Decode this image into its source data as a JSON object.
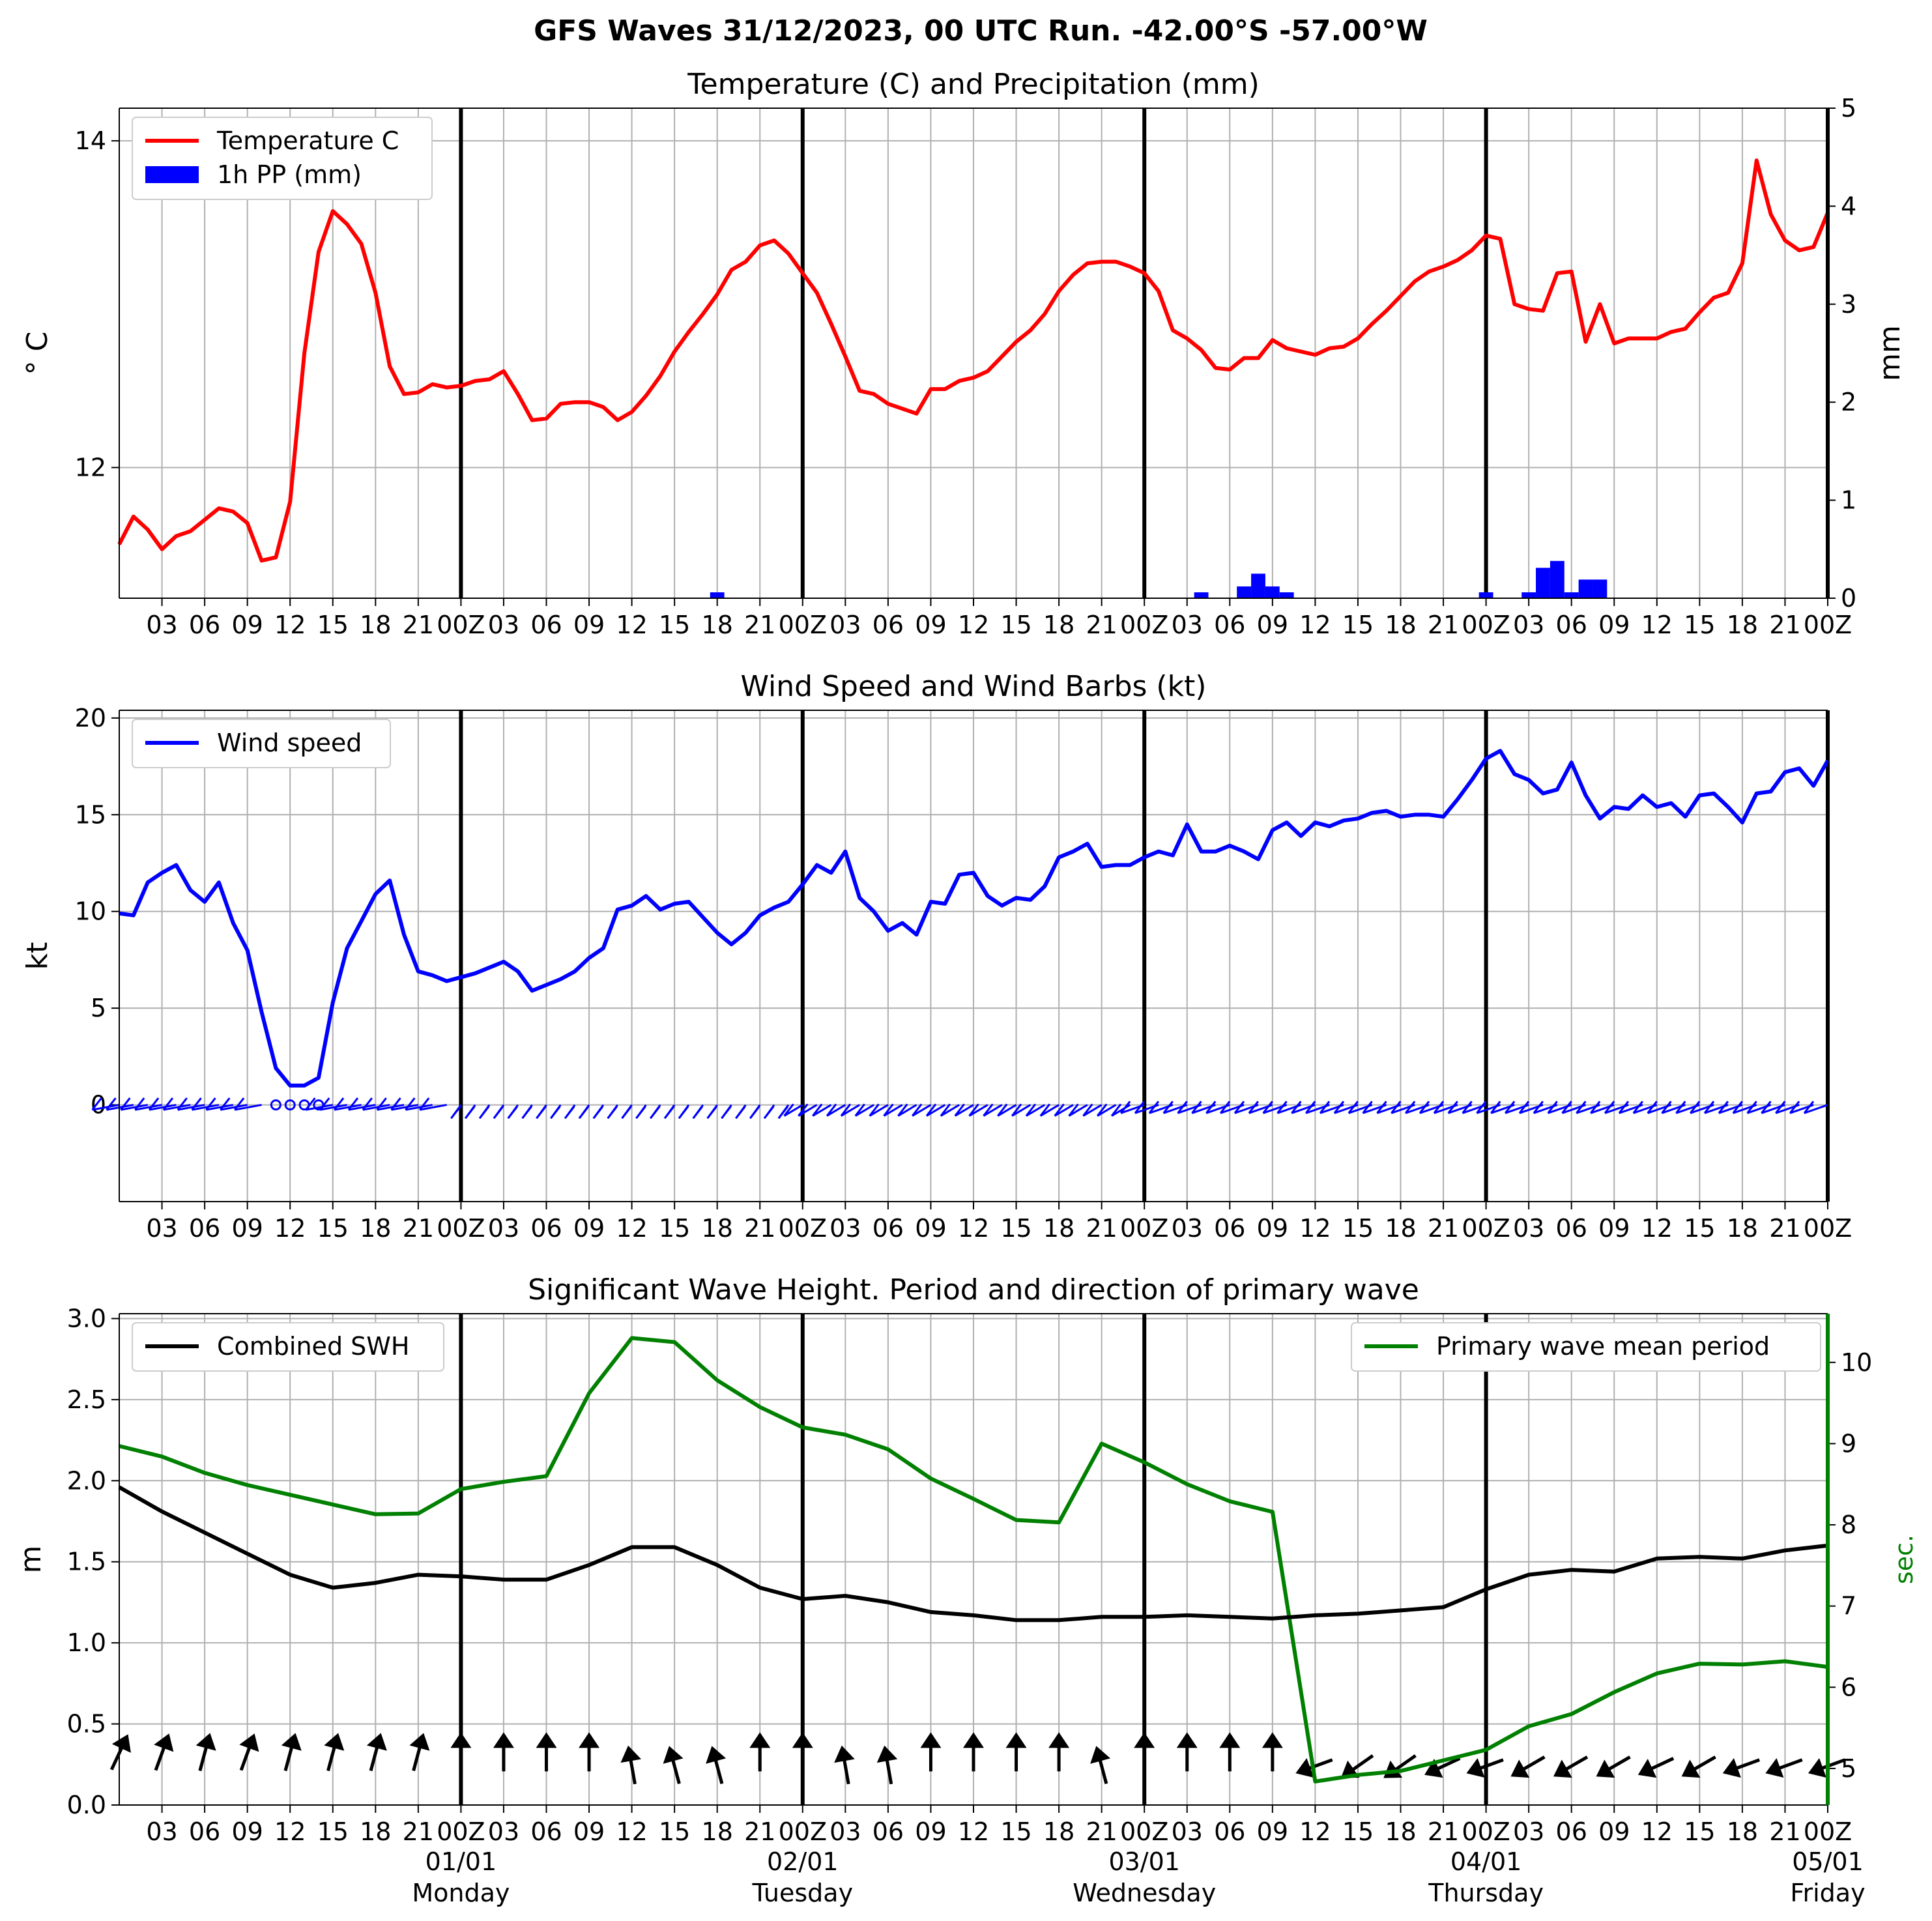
{
  "suptitle": "GFS Waves 31/12/2023, 00 UTC Run. -42.00°S -57.00°W",
  "x_axis": {
    "hour_labels": [
      "03",
      "06",
      "09",
      "12",
      "15",
      "18",
      "21",
      "00Z",
      "03",
      "06",
      "09",
      "12",
      "15",
      "18",
      "21",
      "00Z",
      "03",
      "06",
      "09",
      "12",
      "15",
      "18",
      "21",
      "00Z",
      "03",
      "06",
      "09",
      "12",
      "15",
      "18",
      "21",
      "00Z",
      "03",
      "06",
      "09",
      "12",
      "15",
      "18",
      "21",
      "00Z"
    ],
    "date_labels": [
      "01/01",
      "02/01",
      "03/01",
      "04/01",
      "05/01"
    ],
    "day_labels": [
      "Monday",
      "Tuesday",
      "Wednesday",
      "Thursday",
      "Friday"
    ]
  },
  "chart_data": [
    {
      "type": "line",
      "title": "Temperature (C) and Precipitation (mm)",
      "ylabel": "° C",
      "ylabel_right": "mm",
      "ylim": [
        11.2,
        14.2
      ],
      "ylim_right": [
        0,
        5
      ],
      "yticks": [
        "12",
        "14"
      ],
      "yticks_right": [
        "0",
        "1",
        "2",
        "3",
        "4",
        "5"
      ],
      "legend": [
        "Temperature C",
        "1h PP (mm)"
      ],
      "legend_position": "upper-left",
      "grid": true,
      "x_unit": "hours after 31/12/2023 00 UTC",
      "series": [
        {
          "name": "Temperature C",
          "color": "#ff0000",
          "x": [
            0,
            1,
            2,
            3,
            4,
            5,
            6,
            7,
            8,
            9,
            10,
            11,
            12,
            13,
            14,
            15,
            16,
            17,
            18,
            19,
            20,
            21,
            22,
            23,
            24,
            25,
            26,
            27,
            28,
            29,
            30,
            31,
            32,
            33,
            34,
            35,
            36,
            37,
            38,
            39,
            40,
            41,
            42,
            43,
            44,
            45,
            46,
            47,
            48,
            49,
            50,
            51,
            52,
            53,
            54,
            55,
            56,
            57,
            58,
            59,
            60,
            61,
            62,
            63,
            64,
            65,
            66,
            67,
            68,
            69,
            70,
            71,
            72,
            73,
            74,
            75,
            76,
            77,
            78,
            79,
            80,
            81,
            82,
            83,
            84,
            85,
            86,
            87,
            88,
            89,
            90,
            91,
            92,
            93,
            94,
            95,
            96,
            97,
            98,
            99,
            100,
            101,
            102,
            103,
            104,
            105,
            106,
            107,
            108,
            109,
            110,
            111,
            112,
            113,
            114,
            115,
            116,
            117,
            118,
            119,
            120
          ],
          "values": [
            11.53,
            11.7,
            11.62,
            11.5,
            11.58,
            11.61,
            11.68,
            11.75,
            11.73,
            11.66,
            11.43,
            11.45,
            11.79,
            12.7,
            13.32,
            13.57,
            13.49,
            13.37,
            13.07,
            12.62,
            12.45,
            12.46,
            12.51,
            12.49,
            12.5,
            12.53,
            12.54,
            12.59,
            12.45,
            12.29,
            12.3,
            12.39,
            12.4,
            12.4,
            12.37,
            12.29,
            12.34,
            12.44,
            12.56,
            12.71,
            12.83,
            12.94,
            13.06,
            13.21,
            13.26,
            13.36,
            13.39,
            13.31,
            13.19,
            13.07,
            12.88,
            12.68,
            12.47,
            12.45,
            12.39,
            12.36,
            12.33,
            12.48,
            12.48,
            12.53,
            12.55,
            12.59,
            12.68,
            12.77,
            12.84,
            12.94,
            13.08,
            13.18,
            13.25,
            13.26,
            13.26,
            13.23,
            13.19,
            13.08,
            12.84,
            12.79,
            12.72,
            12.61,
            12.6,
            12.67,
            12.67,
            12.78,
            12.73,
            12.71,
            12.69,
            12.73,
            12.74,
            12.79,
            12.88,
            12.96,
            13.05,
            13.14,
            13.2,
            13.23,
            13.27,
            13.33,
            13.42,
            13.4,
            13.0,
            12.97,
            12.96,
            13.19,
            13.2,
            12.77,
            13.0,
            12.76,
            12.79,
            12.79,
            12.79,
            12.83,
            12.85,
            12.95,
            13.04,
            13.07,
            13.25,
            13.88,
            13.55,
            13.39,
            13.33,
            13.35,
            13.56
          ]
        }
      ],
      "bars": {
        "name": "1h PP (mm)",
        "color": "#0000ff",
        "x": [
          42,
          76,
          79,
          80,
          81,
          82,
          96,
          99,
          100,
          101,
          102,
          103,
          104
        ],
        "values": [
          0.06,
          0.06,
          0.12,
          0.25,
          0.12,
          0.06,
          0.06,
          0.06,
          0.31,
          0.38,
          0.06,
          0.19,
          0.19
        ]
      }
    },
    {
      "type": "line",
      "title": "Wind Speed and Wind Barbs (kt)",
      "ylabel": "kt",
      "ylim": [
        -5,
        20.4
      ],
      "yticks": [
        "0",
        "5",
        "10",
        "15",
        "20"
      ],
      "legend": [
        "Wind speed"
      ],
      "legend_position": "upper-left",
      "grid": true,
      "series": [
        {
          "name": "Wind speed",
          "color": "#0000ff",
          "x": [
            0,
            1,
            2,
            3,
            4,
            5,
            6,
            7,
            8,
            9,
            10,
            11,
            12,
            13,
            14,
            15,
            16,
            17,
            18,
            19,
            20,
            21,
            22,
            23,
            24,
            25,
            26,
            27,
            28,
            29,
            30,
            31,
            32,
            33,
            34,
            35,
            36,
            37,
            38,
            39,
            40,
            41,
            42,
            43,
            44,
            45,
            46,
            47,
            48,
            49,
            50,
            51,
            52,
            53,
            54,
            55,
            56,
            57,
            58,
            59,
            60,
            61,
            62,
            63,
            64,
            65,
            66,
            67,
            68,
            69,
            70,
            71,
            72,
            73,
            74,
            75,
            76,
            77,
            78,
            79,
            80,
            81,
            82,
            83,
            84,
            85,
            86,
            87,
            88,
            89,
            90,
            91,
            92,
            93,
            94,
            95,
            96,
            97,
            98,
            99,
            100,
            101,
            102,
            103,
            104,
            105,
            106,
            107,
            108,
            109,
            110,
            111,
            112,
            113,
            114,
            115,
            116,
            117,
            118,
            119,
            120
          ],
          "values": [
            9.9,
            9.8,
            11.5,
            12.0,
            12.4,
            11.1,
            10.5,
            11.5,
            9.4,
            8.0,
            4.8,
            1.9,
            1.0,
            1.0,
            1.4,
            5.3,
            8.1,
            9.5,
            10.9,
            11.6,
            8.8,
            6.9,
            6.7,
            6.4,
            6.6,
            6.8,
            7.1,
            7.4,
            6.9,
            5.9,
            6.2,
            6.5,
            6.9,
            7.6,
            8.1,
            10.1,
            10.3,
            10.8,
            10.1,
            10.4,
            10.5,
            9.7,
            8.9,
            8.3,
            8.9,
            9.8,
            10.2,
            10.5,
            11.4,
            12.4,
            12.0,
            13.1,
            10.7,
            10.0,
            9.0,
            9.4,
            8.8,
            10.5,
            10.4,
            11.9,
            12.0,
            10.8,
            10.3,
            10.7,
            10.6,
            11.3,
            12.8,
            13.1,
            13.5,
            12.3,
            12.4,
            12.4,
            12.8,
            13.1,
            12.9,
            14.5,
            13.1,
            13.1,
            13.4,
            13.1,
            12.7,
            14.2,
            14.6,
            13.9,
            14.6,
            14.4,
            14.7,
            14.8,
            15.1,
            15.2,
            14.9,
            15.0,
            15.0,
            14.9,
            15.8,
            16.8,
            17.9,
            18.3,
            17.1,
            16.8,
            16.1,
            16.3,
            17.7,
            16.0,
            14.8,
            15.4,
            15.3,
            16.0,
            15.4,
            15.6,
            14.9,
            16.0,
            16.1,
            15.4,
            14.6,
            16.1,
            16.2,
            17.2,
            17.4,
            16.5,
            17.8
          ]
        }
      ],
      "barbs": "wind barbs along y = 0"
    },
    {
      "type": "line",
      "title": "Significant Wave Height. Period and direction of primary wave",
      "ylabel": "m",
      "ylabel_right": "sec.",
      "ylim": [
        0,
        3.03
      ],
      "ylim_right": [
        4.55,
        10.6
      ],
      "yticks": [
        "0.0",
        "0.5",
        "1.0",
        "1.5",
        "2.0",
        "2.5",
        "3.0"
      ],
      "yticks_right": [
        "5",
        "6",
        "7",
        "8",
        "9",
        "10"
      ],
      "legend": [
        "Combined SWH",
        "Primary wave mean period"
      ],
      "legend_position": "upper-left / upper-right",
      "grid": true,
      "series": [
        {
          "name": "Combined SWH",
          "color": "#000000",
          "x": [
            0,
            3,
            6,
            9,
            12,
            15,
            18,
            21,
            24,
            27,
            30,
            33,
            36,
            39,
            42,
            45,
            48,
            51,
            54,
            57,
            60,
            63,
            66,
            69,
            72,
            75,
            78,
            81,
            84,
            87,
            90,
            93,
            96,
            99,
            102,
            105,
            108,
            111,
            114,
            117,
            120
          ],
          "values": [
            1.96,
            1.81,
            1.68,
            1.55,
            1.42,
            1.34,
            1.37,
            1.42,
            1.41,
            1.39,
            1.39,
            1.48,
            1.59,
            1.59,
            1.48,
            1.34,
            1.27,
            1.29,
            1.25,
            1.19,
            1.17,
            1.14,
            1.14,
            1.16,
            1.16,
            1.17,
            1.16,
            1.15,
            1.17,
            1.18,
            1.2,
            1.22,
            1.33,
            1.42,
            1.45,
            1.44,
            1.52,
            1.53,
            1.52,
            1.57,
            1.6
          ]
        },
        {
          "name": "Primary wave mean period",
          "color": "#008000",
          "axis": "right",
          "x": [
            0,
            3,
            6,
            9,
            12,
            15,
            18,
            21,
            24,
            27,
            30,
            33,
            36,
            39,
            42,
            45,
            48,
            51,
            54,
            57,
            60,
            63,
            66,
            69,
            72,
            75,
            78,
            81,
            84,
            87,
            90,
            93,
            96,
            99,
            102,
            105,
            108,
            111,
            114,
            117,
            120
          ],
          "values": [
            8.97,
            8.84,
            8.64,
            8.49,
            8.37,
            8.25,
            8.13,
            8.14,
            8.44,
            8.53,
            8.6,
            9.62,
            10.3,
            10.25,
            9.78,
            9.45,
            9.2,
            9.11,
            8.93,
            8.57,
            8.32,
            8.06,
            8.03,
            9.0,
            8.77,
            8.5,
            8.29,
            8.16,
            4.84,
            4.92,
            4.97,
            5.1,
            5.23,
            5.52,
            5.67,
            5.94,
            6.17,
            6.29,
            6.28,
            6.32,
            6.25
          ]
        }
      ],
      "arrow_color": "#000000",
      "direction_arrows": {
        "x": [
          0,
          3,
          6,
          9,
          12,
          15,
          18,
          21,
          24,
          27,
          30,
          33,
          36,
          39,
          42,
          45,
          48,
          51,
          54,
          57,
          60,
          63,
          66,
          69,
          72,
          75,
          78,
          81,
          84,
          87,
          90,
          93,
          96,
          99,
          102,
          105,
          108,
          111,
          114,
          117,
          120
        ],
        "angles_deg": [
          25,
          20,
          15,
          20,
          15,
          15,
          15,
          15,
          0,
          0,
          0,
          0,
          350,
          345,
          345,
          0,
          0,
          350,
          350,
          0,
          0,
          0,
          0,
          345,
          0,
          0,
          0,
          0,
          250,
          235,
          235,
          245,
          250,
          240,
          240,
          240,
          245,
          240,
          250,
          250,
          250
        ]
      }
    }
  ]
}
